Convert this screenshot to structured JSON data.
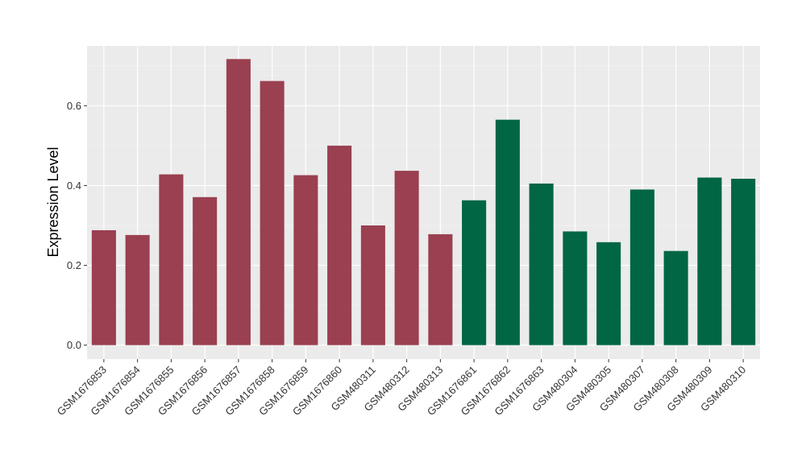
{
  "chart_data": {
    "type": "bar",
    "title": "",
    "xlabel": "",
    "ylabel": "Expression Level",
    "ylim": [
      -0.035,
      0.75
    ],
    "yticks": [
      0.0,
      0.2,
      0.4,
      0.6
    ],
    "ytick_labels": [
      "0.0",
      "0.2",
      "0.4",
      "0.6"
    ],
    "grid": true,
    "panel_background": "#EBEBEB",
    "categories": [
      "GSM1676853",
      "GSM1676854",
      "GSM1676855",
      "GSM1676856",
      "GSM1676857",
      "GSM1676858",
      "GSM1676859",
      "GSM1676860",
      "GSM480311",
      "GSM480312",
      "GSM480313",
      "GSM1676861",
      "GSM1676862",
      "GSM1676863",
      "GSM480304",
      "GSM480305",
      "GSM480307",
      "GSM480308",
      "GSM480309",
      "GSM480310"
    ],
    "values": [
      0.288,
      0.276,
      0.428,
      0.371,
      0.717,
      0.662,
      0.426,
      0.5,
      0.3,
      0.437,
      0.278,
      0.363,
      0.565,
      0.405,
      0.285,
      0.258,
      0.39,
      0.236,
      0.42,
      0.417
    ],
    "bar_colors": [
      "#9A4050",
      "#9A4050",
      "#9A4050",
      "#9A4050",
      "#9A4050",
      "#9A4050",
      "#9A4050",
      "#9A4050",
      "#9A4050",
      "#9A4050",
      "#9A4050",
      "#006644",
      "#006644",
      "#006644",
      "#006644",
      "#006644",
      "#006644",
      "#006644",
      "#006644",
      "#006644"
    ]
  }
}
